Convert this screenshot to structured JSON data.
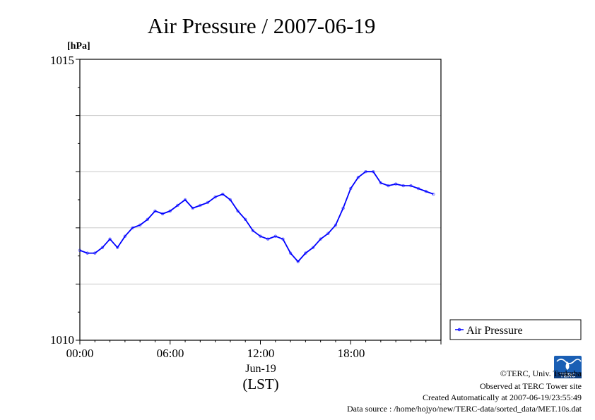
{
  "page_title": "Air Pressure / 2007-06-19",
  "chart_data": {
    "type": "line",
    "title": "Air Pressure / 2007-06-19",
    "ylabel": "[hPa]",
    "ylim": [
      1010,
      1015
    ],
    "y_ticks": [
      "1015",
      "1010"
    ],
    "y_gridlines": [
      1011,
      1012,
      1013,
      1014
    ],
    "xlim": [
      0,
      24
    ],
    "x_ticks": [
      {
        "label": "00:00",
        "hour": 0
      },
      {
        "label": "06:00",
        "hour": 6
      },
      {
        "label": "12:00",
        "hour": 12
      },
      {
        "label": "18:00",
        "hour": 18
      }
    ],
    "xlabel_date": "Jun-19",
    "xlabel_tz": "(LST)",
    "grid": true,
    "legend_position": "right",
    "series": [
      {
        "name": "Air Pressure",
        "color": "#0000ff",
        "x": [
          0.0,
          0.5,
          1.0,
          1.5,
          2.0,
          2.5,
          3.0,
          3.5,
          4.0,
          4.5,
          5.0,
          5.5,
          6.0,
          6.5,
          7.0,
          7.5,
          8.0,
          8.5,
          9.0,
          9.5,
          10.0,
          10.5,
          11.0,
          11.5,
          12.0,
          12.5,
          13.0,
          13.5,
          14.0,
          14.5,
          15.0,
          15.5,
          16.0,
          16.5,
          17.0,
          17.5,
          18.0,
          18.5,
          19.0,
          19.5,
          20.0,
          20.5,
          21.0,
          21.5,
          22.0,
          22.5,
          23.0,
          23.5
        ],
        "y": [
          1011.6,
          1011.55,
          1011.55,
          1011.65,
          1011.8,
          1011.65,
          1011.85,
          1012.0,
          1012.05,
          1012.15,
          1012.3,
          1012.25,
          1012.3,
          1012.4,
          1012.5,
          1012.35,
          1012.4,
          1012.45,
          1012.55,
          1012.6,
          1012.5,
          1012.3,
          1012.15,
          1011.95,
          1011.85,
          1011.8,
          1011.85,
          1011.8,
          1011.55,
          1011.4,
          1011.55,
          1011.65,
          1011.8,
          1011.9,
          1012.05,
          1012.35,
          1012.7,
          1012.9,
          1013.0,
          1013.0,
          1012.8,
          1012.75,
          1012.78,
          1012.75,
          1012.75,
          1012.7,
          1012.65,
          1012.6
        ]
      }
    ]
  },
  "credits": {
    "copyright": "©TERC, Univ. Tsukuba",
    "observed": "Observed at TERC Tower site",
    "created": "Created Automatically at 2007-06-19/23:55:49",
    "source": "Data source : /home/hojyo/new/TERC-data/sorted_data/MET.10s.dat"
  },
  "logo": {
    "text": "TERC",
    "color": "#1a5fb4",
    "icon": "terc-logo-icon"
  }
}
